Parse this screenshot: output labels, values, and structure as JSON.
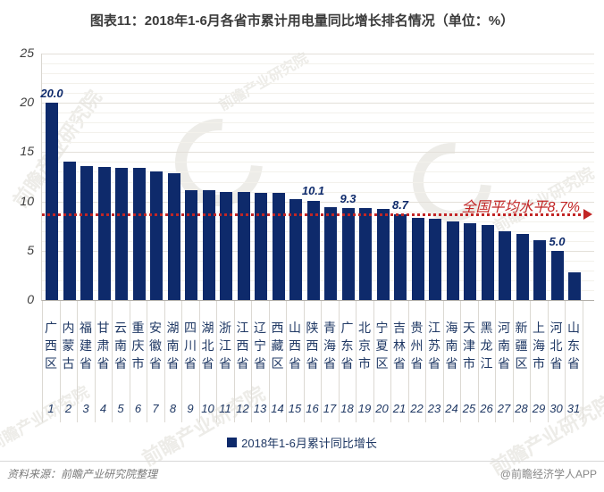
{
  "title": "图表11：2018年1-6月各省市累计用电量同比增长排名情况（单位：%）",
  "chart_data": {
    "type": "bar",
    "title": "图表11：2018年1-6月各省市累计用电量同比增长排名情况（单位：%）",
    "unit": "%",
    "categories": [
      "广西区",
      "内蒙古",
      "福建省",
      "甘肃省",
      "云南省",
      "重庆市",
      "安徽省",
      "湖南省",
      "四川省",
      "湖北省",
      "浙江省",
      "江西省",
      "辽宁省",
      "西藏区",
      "山西省",
      "陕西省",
      "青海省",
      "广东省",
      "北京市",
      "宁夏区",
      "吉林省",
      "贵州省",
      "江苏省",
      "海南省",
      "天津市",
      "黑龙江",
      "河南省",
      "新疆区",
      "上海市",
      "河北省",
      "山东省"
    ],
    "ranks": [
      1,
      2,
      3,
      4,
      5,
      6,
      7,
      8,
      9,
      10,
      11,
      12,
      13,
      14,
      15,
      16,
      17,
      18,
      19,
      20,
      21,
      22,
      23,
      24,
      25,
      26,
      27,
      28,
      29,
      30,
      31
    ],
    "values": [
      20.0,
      14.0,
      13.6,
      13.5,
      13.4,
      13.4,
      13.0,
      12.9,
      11.1,
      11.1,
      11.0,
      11.0,
      10.9,
      10.9,
      10.2,
      10.1,
      9.4,
      9.3,
      9.3,
      9.2,
      8.7,
      8.3,
      8.2,
      8.0,
      7.8,
      7.6,
      7.0,
      6.7,
      6.1,
      5.0,
      2.8
    ],
    "point_labels": [
      {
        "index": 0,
        "text": "20.0"
      },
      {
        "index": 15,
        "text": "10.1"
      },
      {
        "index": 17,
        "text": "9.3"
      },
      {
        "index": 20,
        "text": "8.7"
      },
      {
        "index": 29,
        "text": "5.0"
      }
    ],
    "ylim": [
      0,
      25
    ],
    "yticks": [
      0,
      5,
      10,
      15,
      20,
      25
    ],
    "grid": "horizontal, minor every 1, major every 5",
    "legend": "2018年1-6月累计同比增长",
    "legend_position": "bottom",
    "average_line": {
      "value": 8.7,
      "label": "全国平均水平8.7%"
    },
    "colors": {
      "bar": "#0E2A6B",
      "category_text": "#1F3864",
      "average": "#C22525"
    }
  },
  "footer": {
    "source": "资料来源：前瞻产业研究院整理",
    "credit": "@前瞻经济学人APP"
  },
  "watermark": {
    "text": "前瞻产业研究院"
  }
}
